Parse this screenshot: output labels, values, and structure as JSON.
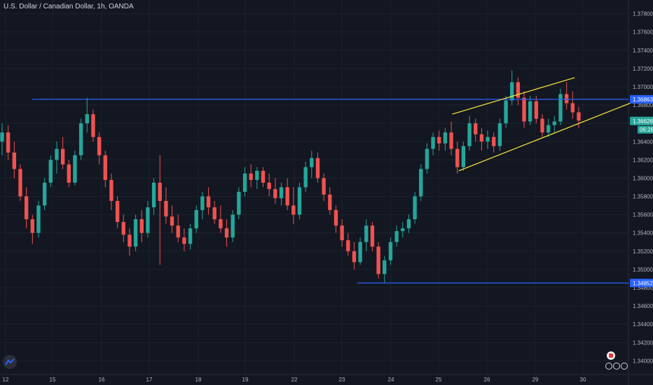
{
  "header": {
    "title": "U.S. Dollar / Canadian Dollar, 1h, OANDA"
  },
  "colors": {
    "background": "#131722",
    "grid": "#1e222d",
    "up": "#26a69a",
    "down": "#ef5350",
    "level_line": "#2962ff",
    "channel": "#ffeb3b",
    "axis_text": "#b2b5be"
  },
  "icons": {
    "logo": "tradingview-logo-icon",
    "flag": "canada-flag-icon"
  },
  "chart_data": {
    "type": "candlestick",
    "title": "U.S. Dollar / Canadian Dollar, 1h, OANDA",
    "ylim": [
      1.3385,
      1.3795
    ],
    "y_ticks": [
      "1.37800",
      "1.37600",
      "1.37400",
      "1.37200",
      "1.37000",
      "1.36800",
      "1.36600",
      "1.36400",
      "1.36200",
      "1.36000",
      "1.35800",
      "1.35600",
      "1.35400",
      "1.35200",
      "1.35000",
      "1.34800",
      "1.34600",
      "1.34400",
      "1.34200",
      "1.34000"
    ],
    "x_ticks": [
      "12",
      "15",
      "16",
      "17",
      "18",
      "19",
      "22",
      "23",
      "24",
      "25",
      "26",
      "29",
      "30"
    ],
    "price_close_path": [
      1.3645,
      1.3635,
      1.362,
      1.3595,
      1.3575,
      1.3545,
      1.3565,
      1.359,
      1.362,
      1.3655,
      1.363,
      1.361,
      1.363,
      1.366,
      1.367,
      1.3655,
      1.363,
      1.364,
      1.3615,
      1.3585,
      1.356,
      1.3545,
      1.353,
      1.3525,
      1.354,
      1.356,
      1.3545,
      1.3565,
      1.36,
      1.358,
      1.356,
      1.355,
      1.354,
      1.3535,
      1.3545,
      1.356,
      1.358,
      1.3575,
      1.3565,
      1.3545,
      1.3555,
      1.3575,
      1.3595,
      1.361,
      1.3605,
      1.359,
      1.36,
      1.3595,
      1.3585,
      1.357,
      1.356,
      1.3575,
      1.36,
      1.3615,
      1.361,
      1.36,
      1.358,
      1.356,
      1.3545,
      1.3535,
      1.352,
      1.351,
      1.3505,
      1.3525,
      1.354,
      1.352,
      1.3495,
      1.3505,
      1.352,
      1.3535,
      1.354,
      1.3545,
      1.356,
      1.358,
      1.361,
      1.363,
      1.364,
      1.3645,
      1.3638,
      1.365,
      1.364,
      1.3615,
      1.3635,
      1.366,
      1.365,
      1.364,
      1.3645,
      1.3635,
      1.366,
      1.368,
      1.37,
      1.369,
      1.366,
      1.368,
      1.3665,
      1.365,
      1.3655,
      1.366,
      1.369,
      1.368,
      1.3662
    ],
    "candles": [
      {
        "o": 1.364,
        "h": 1.366,
        "l": 1.3625,
        "c": 1.365
      },
      {
        "o": 1.365,
        "h": 1.3658,
        "l": 1.362,
        "c": 1.3628
      },
      {
        "o": 1.3628,
        "h": 1.364,
        "l": 1.36,
        "c": 1.361
      },
      {
        "o": 1.361,
        "h": 1.3615,
        "l": 1.3575,
        "c": 1.358
      },
      {
        "o": 1.358,
        "h": 1.359,
        "l": 1.3545,
        "c": 1.3555
      },
      {
        "o": 1.3555,
        "h": 1.356,
        "l": 1.3528,
        "c": 1.354
      },
      {
        "o": 1.354,
        "h": 1.3575,
        "l": 1.3535,
        "c": 1.357
      },
      {
        "o": 1.357,
        "h": 1.36,
        "l": 1.3565,
        "c": 1.3595
      },
      {
        "o": 1.3595,
        "h": 1.3625,
        "l": 1.359,
        "c": 1.362
      },
      {
        "o": 1.362,
        "h": 1.364,
        "l": 1.3605,
        "c": 1.3632
      },
      {
        "o": 1.3632,
        "h": 1.3645,
        "l": 1.361,
        "c": 1.3615
      },
      {
        "o": 1.3615,
        "h": 1.362,
        "l": 1.359,
        "c": 1.3595
      },
      {
        "o": 1.3595,
        "h": 1.363,
        "l": 1.3592,
        "c": 1.3625
      },
      {
        "o": 1.3625,
        "h": 1.3665,
        "l": 1.362,
        "c": 1.366
      },
      {
        "o": 1.366,
        "h": 1.3688,
        "l": 1.365,
        "c": 1.367
      },
      {
        "o": 1.367,
        "h": 1.3675,
        "l": 1.364,
        "c": 1.3645
      },
      {
        "o": 1.3645,
        "h": 1.365,
        "l": 1.3615,
        "c": 1.3625
      },
      {
        "o": 1.3625,
        "h": 1.363,
        "l": 1.359,
        "c": 1.3598
      },
      {
        "o": 1.3598,
        "h": 1.3605,
        "l": 1.3565,
        "c": 1.3575
      },
      {
        "o": 1.3575,
        "h": 1.358,
        "l": 1.3545,
        "c": 1.3552
      },
      {
        "o": 1.3552,
        "h": 1.356,
        "l": 1.353,
        "c": 1.3538
      },
      {
        "o": 1.3538,
        "h": 1.3545,
        "l": 1.3515,
        "c": 1.3525
      },
      {
        "o": 1.3525,
        "h": 1.356,
        "l": 1.352,
        "c": 1.3555
      },
      {
        "o": 1.3555,
        "h": 1.3565,
        "l": 1.353,
        "c": 1.354
      },
      {
        "o": 1.354,
        "h": 1.3575,
        "l": 1.3535,
        "c": 1.3568
      },
      {
        "o": 1.3568,
        "h": 1.36,
        "l": 1.356,
        "c": 1.3595
      },
      {
        "o": 1.3595,
        "h": 1.3625,
        "l": 1.3505,
        "c": 1.3575
      },
      {
        "o": 1.3575,
        "h": 1.359,
        "l": 1.355,
        "c": 1.3558
      },
      {
        "o": 1.3558,
        "h": 1.357,
        "l": 1.354,
        "c": 1.3548
      },
      {
        "o": 1.3548,
        "h": 1.356,
        "l": 1.353,
        "c": 1.3535
      },
      {
        "o": 1.3535,
        "h": 1.3545,
        "l": 1.352,
        "c": 1.3528
      },
      {
        "o": 1.3528,
        "h": 1.355,
        "l": 1.3522,
        "c": 1.3545
      },
      {
        "o": 1.3545,
        "h": 1.357,
        "l": 1.354,
        "c": 1.3565
      },
      {
        "o": 1.3565,
        "h": 1.3585,
        "l": 1.3555,
        "c": 1.358
      },
      {
        "o": 1.358,
        "h": 1.359,
        "l": 1.356,
        "c": 1.3568
      },
      {
        "o": 1.3568,
        "h": 1.3575,
        "l": 1.355,
        "c": 1.3555
      },
      {
        "o": 1.3555,
        "h": 1.357,
        "l": 1.354,
        "c": 1.3545
      },
      {
        "o": 1.3545,
        "h": 1.3555,
        "l": 1.3525,
        "c": 1.3535
      },
      {
        "o": 1.3535,
        "h": 1.3565,
        "l": 1.353,
        "c": 1.356
      },
      {
        "o": 1.356,
        "h": 1.359,
        "l": 1.3555,
        "c": 1.3585
      },
      {
        "o": 1.3585,
        "h": 1.3612,
        "l": 1.358,
        "c": 1.3605
      },
      {
        "o": 1.3605,
        "h": 1.3615,
        "l": 1.359,
        "c": 1.3598
      },
      {
        "o": 1.3598,
        "h": 1.3612,
        "l": 1.3588,
        "c": 1.3608
      },
      {
        "o": 1.3608,
        "h": 1.3612,
        "l": 1.359,
        "c": 1.3595
      },
      {
        "o": 1.3595,
        "h": 1.3605,
        "l": 1.358,
        "c": 1.3588
      },
      {
        "o": 1.3588,
        "h": 1.36,
        "l": 1.3572,
        "c": 1.3578
      },
      {
        "o": 1.3578,
        "h": 1.3595,
        "l": 1.357,
        "c": 1.359
      },
      {
        "o": 1.359,
        "h": 1.36,
        "l": 1.3565,
        "c": 1.357
      },
      {
        "o": 1.357,
        "h": 1.359,
        "l": 1.355,
        "c": 1.356
      },
      {
        "o": 1.356,
        "h": 1.3595,
        "l": 1.3555,
        "c": 1.359
      },
      {
        "o": 1.359,
        "h": 1.3618,
        "l": 1.3585,
        "c": 1.3612
      },
      {
        "o": 1.3612,
        "h": 1.363,
        "l": 1.36,
        "c": 1.3622
      },
      {
        "o": 1.3622,
        "h": 1.3628,
        "l": 1.3595,
        "c": 1.36
      },
      {
        "o": 1.36,
        "h": 1.3605,
        "l": 1.3575,
        "c": 1.3582
      },
      {
        "o": 1.3582,
        "h": 1.359,
        "l": 1.356,
        "c": 1.3565
      },
      {
        "o": 1.3565,
        "h": 1.357,
        "l": 1.354,
        "c": 1.3548
      },
      {
        "o": 1.3548,
        "h": 1.3555,
        "l": 1.3525,
        "c": 1.3532
      },
      {
        "o": 1.3532,
        "h": 1.354,
        "l": 1.3515,
        "c": 1.352
      },
      {
        "o": 1.352,
        "h": 1.353,
        "l": 1.35,
        "c": 1.3508
      },
      {
        "o": 1.3508,
        "h": 1.3535,
        "l": 1.3505,
        "c": 1.353
      },
      {
        "o": 1.353,
        "h": 1.3555,
        "l": 1.352,
        "c": 1.3548
      },
      {
        "o": 1.3548,
        "h": 1.3552,
        "l": 1.352,
        "c": 1.3525
      },
      {
        "o": 1.3525,
        "h": 1.353,
        "l": 1.349,
        "c": 1.3495
      },
      {
        "o": 1.3495,
        "h": 1.3515,
        "l": 1.3485,
        "c": 1.351
      },
      {
        "o": 1.351,
        "h": 1.3535,
        "l": 1.3505,
        "c": 1.353
      },
      {
        "o": 1.353,
        "h": 1.3548,
        "l": 1.3525,
        "c": 1.3542
      },
      {
        "o": 1.3542,
        "h": 1.3552,
        "l": 1.3535,
        "c": 1.3545
      },
      {
        "o": 1.3545,
        "h": 1.356,
        "l": 1.354,
        "c": 1.3555
      },
      {
        "o": 1.3555,
        "h": 1.3585,
        "l": 1.355,
        "c": 1.358
      },
      {
        "o": 1.358,
        "h": 1.3615,
        "l": 1.3575,
        "c": 1.361
      },
      {
        "o": 1.361,
        "h": 1.3638,
        "l": 1.3605,
        "c": 1.3632
      },
      {
        "o": 1.3632,
        "h": 1.365,
        "l": 1.3625,
        "c": 1.3645
      },
      {
        "o": 1.3645,
        "h": 1.3652,
        "l": 1.363,
        "c": 1.3638
      },
      {
        "o": 1.3638,
        "h": 1.3655,
        "l": 1.363,
        "c": 1.365
      },
      {
        "o": 1.365,
        "h": 1.3662,
        "l": 1.3625,
        "c": 1.3632
      },
      {
        "o": 1.3632,
        "h": 1.364,
        "l": 1.3605,
        "c": 1.3612
      },
      {
        "o": 1.3612,
        "h": 1.364,
        "l": 1.3608,
        "c": 1.3635
      },
      {
        "o": 1.3635,
        "h": 1.3668,
        "l": 1.363,
        "c": 1.366
      },
      {
        "o": 1.366,
        "h": 1.3665,
        "l": 1.364,
        "c": 1.3648
      },
      {
        "o": 1.3648,
        "h": 1.3655,
        "l": 1.363,
        "c": 1.364
      },
      {
        "o": 1.364,
        "h": 1.3652,
        "l": 1.3632,
        "c": 1.3645
      },
      {
        "o": 1.3645,
        "h": 1.365,
        "l": 1.3628,
        "c": 1.3635
      },
      {
        "o": 1.3635,
        "h": 1.3665,
        "l": 1.363,
        "c": 1.366
      },
      {
        "o": 1.366,
        "h": 1.369,
        "l": 1.3655,
        "c": 1.3685
      },
      {
        "o": 1.3685,
        "h": 1.3718,
        "l": 1.368,
        "c": 1.3705
      },
      {
        "o": 1.3705,
        "h": 1.371,
        "l": 1.368,
        "c": 1.3688
      },
      {
        "o": 1.3688,
        "h": 1.3695,
        "l": 1.3655,
        "c": 1.3662
      },
      {
        "o": 1.3662,
        "h": 1.369,
        "l": 1.3658,
        "c": 1.3684
      },
      {
        "o": 1.3684,
        "h": 1.369,
        "l": 1.366,
        "c": 1.3665
      },
      {
        "o": 1.3665,
        "h": 1.367,
        "l": 1.3645,
        "c": 1.365
      },
      {
        "o": 1.365,
        "h": 1.3665,
        "l": 1.3645,
        "c": 1.3658
      },
      {
        "o": 1.3658,
        "h": 1.3668,
        "l": 1.365,
        "c": 1.3662
      },
      {
        "o": 1.3662,
        "h": 1.3698,
        "l": 1.3658,
        "c": 1.3692
      },
      {
        "o": 1.3692,
        "h": 1.3705,
        "l": 1.3675,
        "c": 1.3682
      },
      {
        "o": 1.3682,
        "h": 1.3695,
        "l": 1.3665,
        "c": 1.3672
      },
      {
        "o": 1.3672,
        "h": 1.3678,
        "l": 1.3655,
        "c": 1.3663
      }
    ],
    "levels": [
      {
        "name": "resistance",
        "price": 1.36863,
        "label": "1.36863"
      },
      {
        "name": "support",
        "price": 1.34852,
        "label": "1.34852"
      }
    ],
    "channel": {
      "upper": [
        [
          0.6925,
          1.367
        ],
        [
          0.88,
          1.371
        ]
      ],
      "lower": [
        [
          0.7025,
          1.3608
        ],
        [
          0.965,
          1.3682
        ]
      ]
    },
    "last_price": {
      "label": "1.36626",
      "price": 1.36626,
      "countdown": "06:26"
    }
  }
}
